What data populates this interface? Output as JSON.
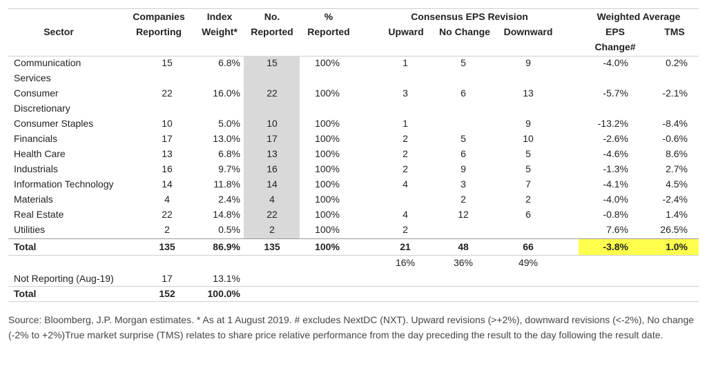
{
  "headers": {
    "sector": "Sector",
    "companies": [
      "Companies",
      "Reporting"
    ],
    "index_weight": [
      "Index",
      "Weight*"
    ],
    "no_reported": [
      "No.",
      "Reported"
    ],
    "pct_reported": [
      "%",
      "Reported"
    ],
    "consensus": "Consensus EPS Revision",
    "upward": "Upward",
    "no_change": "No Change",
    "downward": "Downward",
    "weighted": "Weighted Average",
    "eps": [
      "EPS",
      "Change#"
    ],
    "tms": "TMS"
  },
  "rows": [
    {
      "sector": "Communication",
      "sector2": "Services",
      "companies": "15",
      "weight": "6.8%",
      "reported": "15",
      "pct": "100%",
      "up": "1",
      "nochange": "5",
      "down": "9",
      "eps": "-4.0%",
      "tms": "0.2%"
    },
    {
      "sector": "Consumer",
      "sector2": "Discretionary",
      "companies": "22",
      "weight": "16.0%",
      "reported": "22",
      "pct": "100%",
      "up": "3",
      "nochange": "6",
      "down": "13",
      "eps": "-5.7%",
      "tms": "-2.1%"
    },
    {
      "sector": "Consumer Staples",
      "companies": "10",
      "weight": "5.0%",
      "reported": "10",
      "pct": "100%",
      "up": "1",
      "nochange": "",
      "down": "9",
      "eps": "-13.2%",
      "tms": "-8.4%"
    },
    {
      "sector": "Financials",
      "companies": "17",
      "weight": "13.0%",
      "reported": "17",
      "pct": "100%",
      "up": "2",
      "nochange": "5",
      "down": "10",
      "eps": "-2.6%",
      "tms": "-0.6%"
    },
    {
      "sector": "Health Care",
      "companies": "13",
      "weight": "6.8%",
      "reported": "13",
      "pct": "100%",
      "up": "2",
      "nochange": "6",
      "down": "5",
      "eps": "-4.6%",
      "tms": "8.6%"
    },
    {
      "sector": "Industrials",
      "companies": "16",
      "weight": "9.7%",
      "reported": "16",
      "pct": "100%",
      "up": "2",
      "nochange": "9",
      "down": "5",
      "eps": "-1.3%",
      "tms": "2.7%"
    },
    {
      "sector": "Information Technology",
      "companies": "14",
      "weight": "11.8%",
      "reported": "14",
      "pct": "100%",
      "up": "4",
      "nochange": "3",
      "down": "7",
      "eps": "-4.1%",
      "tms": "4.5%"
    },
    {
      "sector": "Materials",
      "companies": "4",
      "weight": "2.4%",
      "reported": "4",
      "pct": "100%",
      "up": "",
      "nochange": "2",
      "down": "2",
      "eps": "-4.0%",
      "tms": "-2.4%"
    },
    {
      "sector": "Real Estate",
      "companies": "22",
      "weight": "14.8%",
      "reported": "22",
      "pct": "100%",
      "up": "4",
      "nochange": "12",
      "down": "6",
      "eps": "-0.8%",
      "tms": "1.4%"
    },
    {
      "sector": "Utilities",
      "companies": "2",
      "weight": "0.5%",
      "reported": "2",
      "pct": "100%",
      "up": "2",
      "nochange": "",
      "down": "",
      "eps": "7.6%",
      "tms": "26.5%"
    }
  ],
  "total": {
    "sector": "Total",
    "companies": "135",
    "weight": "86.9%",
    "reported": "135",
    "pct": "100%",
    "up": "21",
    "nochange": "48",
    "down": "66",
    "eps": "-3.8%",
    "tms": "1.0%"
  },
  "revision_pcts": {
    "up": "16%",
    "nochange": "36%",
    "down": "49%"
  },
  "not_reporting": {
    "label": "Not Reporting (Aug-19)",
    "companies": "17",
    "weight": "13.1%"
  },
  "grand_total": {
    "label": "Total",
    "companies": "152",
    "weight": "100.0%"
  },
  "source_note": "Source: Bloomberg, J.P. Morgan estimates. * As at 1 August 2019. # excludes NextDC (NXT). Upward revisions (>+2%), downward revisions (<-2%), No change (-2% to +2%)True market surprise (TMS) relates to share price relative performance from the day preceding the result to the day following the result date.",
  "colors": {
    "reported_shade": "#d9d9d9",
    "highlight": "#ffff4d"
  }
}
